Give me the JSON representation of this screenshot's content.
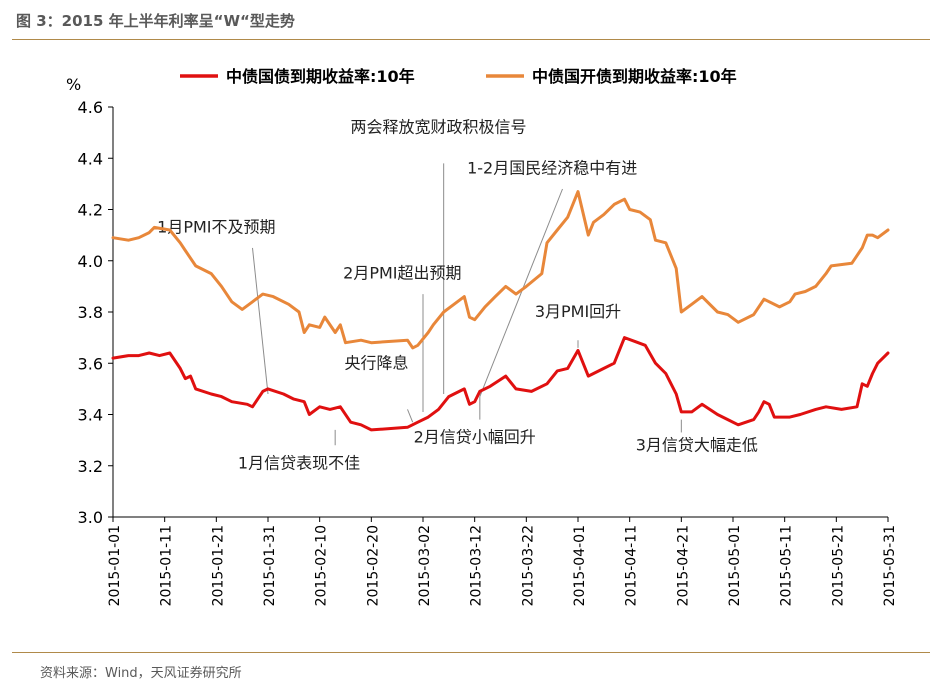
{
  "figure_title": "图 3：2015 年上半年利率呈“W“型走势",
  "source": "资料来源：Wind，天风证券研究所",
  "colors": {
    "series_gk": "#e8873a",
    "series_gz": "#e01010",
    "annotation_line": "#8c8c8c",
    "rule": "#b08a4a",
    "axis": "#000000"
  },
  "chart_data": {
    "type": "line",
    "unit": "%",
    "ylim": [
      3.0,
      4.6
    ],
    "yticks": [
      "3.0",
      "3.2",
      "3.4",
      "3.6",
      "3.8",
      "4.0",
      "4.2",
      "4.4",
      "4.6"
    ],
    "xlim": [
      "2015-01-01",
      "2015-05-31"
    ],
    "xticks": [
      "2015-01-01",
      "2015-01-11",
      "2015-01-21",
      "2015-01-31",
      "2015-02-10",
      "2015-02-20",
      "2015-03-02",
      "2015-03-12",
      "2015-03-22",
      "2015-04-01",
      "2015-04-11",
      "2015-04-21",
      "2015-05-01",
      "2015-05-11",
      "2015-05-21",
      "2015-05-31"
    ],
    "grid": false,
    "legend_position": "top",
    "series": [
      {
        "name": "中债国债到期收益率:10年",
        "color": "#e01010",
        "points": [
          [
            "2015-01-01",
            3.62
          ],
          [
            "2015-01-04",
            3.63
          ],
          [
            "2015-01-06",
            3.63
          ],
          [
            "2015-01-08",
            3.64
          ],
          [
            "2015-01-10",
            3.63
          ],
          [
            "2015-01-12",
            3.64
          ],
          [
            "2015-01-14",
            3.58
          ],
          [
            "2015-01-15",
            3.54
          ],
          [
            "2015-01-16",
            3.55
          ],
          [
            "2015-01-17",
            3.5
          ],
          [
            "2015-01-20",
            3.48
          ],
          [
            "2015-01-22",
            3.47
          ],
          [
            "2015-01-24",
            3.45
          ],
          [
            "2015-01-27",
            3.44
          ],
          [
            "2015-01-28",
            3.43
          ],
          [
            "2015-01-30",
            3.49
          ],
          [
            "2015-01-31",
            3.5
          ],
          [
            "2015-02-03",
            3.48
          ],
          [
            "2015-02-05",
            3.46
          ],
          [
            "2015-02-07",
            3.45
          ],
          [
            "2015-02-08",
            3.4
          ],
          [
            "2015-02-10",
            3.43
          ],
          [
            "2015-02-12",
            3.42
          ],
          [
            "2015-02-14",
            3.43
          ],
          [
            "2015-02-16",
            3.37
          ],
          [
            "2015-02-18",
            3.36
          ],
          [
            "2015-02-20",
            3.34
          ],
          [
            "2015-02-27",
            3.35
          ],
          [
            "2015-03-01",
            3.37
          ],
          [
            "2015-03-03",
            3.39
          ],
          [
            "2015-03-05",
            3.42
          ],
          [
            "2015-03-07",
            3.47
          ],
          [
            "2015-03-08",
            3.48
          ],
          [
            "2015-03-10",
            3.5
          ],
          [
            "2015-03-11",
            3.44
          ],
          [
            "2015-03-12",
            3.45
          ],
          [
            "2015-03-13",
            3.49
          ],
          [
            "2015-03-15",
            3.51
          ],
          [
            "2015-03-18",
            3.55
          ],
          [
            "2015-03-20",
            3.5
          ],
          [
            "2015-03-23",
            3.49
          ],
          [
            "2015-03-26",
            3.52
          ],
          [
            "2015-03-28",
            3.57
          ],
          [
            "2015-03-30",
            3.58
          ],
          [
            "2015-04-01",
            3.65
          ],
          [
            "2015-04-03",
            3.55
          ],
          [
            "2015-04-06",
            3.58
          ],
          [
            "2015-04-08",
            3.6
          ],
          [
            "2015-04-10",
            3.7
          ],
          [
            "2015-04-14",
            3.67
          ],
          [
            "2015-04-16",
            3.6
          ],
          [
            "2015-04-18",
            3.56
          ],
          [
            "2015-04-20",
            3.48
          ],
          [
            "2015-04-21",
            3.41
          ],
          [
            "2015-04-23",
            3.41
          ],
          [
            "2015-04-25",
            3.44
          ],
          [
            "2015-04-28",
            3.4
          ],
          [
            "2015-04-30",
            3.38
          ],
          [
            "2015-05-02",
            3.36
          ],
          [
            "2015-05-05",
            3.38
          ],
          [
            "2015-05-06",
            3.41
          ],
          [
            "2015-05-07",
            3.45
          ],
          [
            "2015-05-08",
            3.44
          ],
          [
            "2015-05-09",
            3.39
          ],
          [
            "2015-05-12",
            3.39
          ],
          [
            "2015-05-14",
            3.4
          ],
          [
            "2015-05-17",
            3.42
          ],
          [
            "2015-05-19",
            3.43
          ],
          [
            "2015-05-22",
            3.42
          ],
          [
            "2015-05-25",
            3.43
          ],
          [
            "2015-05-26",
            3.52
          ],
          [
            "2015-05-27",
            3.51
          ],
          [
            "2015-05-28",
            3.56
          ],
          [
            "2015-05-29",
            3.6
          ],
          [
            "2015-05-31",
            3.64
          ]
        ]
      },
      {
        "name": "中债国开债到期收益率:10年",
        "color": "#e8873a",
        "points": [
          [
            "2015-01-01",
            4.09
          ],
          [
            "2015-01-04",
            4.08
          ],
          [
            "2015-01-06",
            4.09
          ],
          [
            "2015-01-08",
            4.11
          ],
          [
            "2015-01-09",
            4.13
          ],
          [
            "2015-01-12",
            4.12
          ],
          [
            "2015-01-14",
            4.07
          ],
          [
            "2015-01-15",
            4.04
          ],
          [
            "2015-01-17",
            3.98
          ],
          [
            "2015-01-20",
            3.95
          ],
          [
            "2015-01-22",
            3.9
          ],
          [
            "2015-01-24",
            3.84
          ],
          [
            "2015-01-26",
            3.81
          ],
          [
            "2015-01-28",
            3.84
          ],
          [
            "2015-01-30",
            3.87
          ],
          [
            "2015-02-01",
            3.86
          ],
          [
            "2015-02-04",
            3.83
          ],
          [
            "2015-02-06",
            3.8
          ],
          [
            "2015-02-07",
            3.72
          ],
          [
            "2015-02-08",
            3.75
          ],
          [
            "2015-02-10",
            3.74
          ],
          [
            "2015-02-11",
            3.78
          ],
          [
            "2015-02-13",
            3.72
          ],
          [
            "2015-02-14",
            3.75
          ],
          [
            "2015-02-15",
            3.68
          ],
          [
            "2015-02-18",
            3.69
          ],
          [
            "2015-02-20",
            3.68
          ],
          [
            "2015-02-27",
            3.69
          ],
          [
            "2015-02-28",
            3.66
          ],
          [
            "2015-03-01",
            3.67
          ],
          [
            "2015-03-03",
            3.72
          ],
          [
            "2015-03-04",
            3.75
          ],
          [
            "2015-03-06",
            3.8
          ],
          [
            "2015-03-08",
            3.83
          ],
          [
            "2015-03-10",
            3.86
          ],
          [
            "2015-03-11",
            3.78
          ],
          [
            "2015-03-12",
            3.77
          ],
          [
            "2015-03-14",
            3.82
          ],
          [
            "2015-03-16",
            3.86
          ],
          [
            "2015-03-18",
            3.9
          ],
          [
            "2015-03-20",
            3.87
          ],
          [
            "2015-03-22",
            3.9
          ],
          [
            "2015-03-25",
            3.95
          ],
          [
            "2015-03-26",
            4.07
          ],
          [
            "2015-03-28",
            4.12
          ],
          [
            "2015-03-30",
            4.17
          ],
          [
            "2015-04-01",
            4.27
          ],
          [
            "2015-04-03",
            4.1
          ],
          [
            "2015-04-04",
            4.15
          ],
          [
            "2015-04-06",
            4.18
          ],
          [
            "2015-04-08",
            4.22
          ],
          [
            "2015-04-10",
            4.24
          ],
          [
            "2015-04-11",
            4.2
          ],
          [
            "2015-04-13",
            4.19
          ],
          [
            "2015-04-15",
            4.16
          ],
          [
            "2015-04-16",
            4.08
          ],
          [
            "2015-04-18",
            4.07
          ],
          [
            "2015-04-20",
            3.97
          ],
          [
            "2015-04-21",
            3.8
          ],
          [
            "2015-04-23",
            3.83
          ],
          [
            "2015-04-25",
            3.86
          ],
          [
            "2015-04-28",
            3.8
          ],
          [
            "2015-04-30",
            3.79
          ],
          [
            "2015-05-02",
            3.76
          ],
          [
            "2015-05-05",
            3.79
          ],
          [
            "2015-05-07",
            3.85
          ],
          [
            "2015-05-10",
            3.82
          ],
          [
            "2015-05-12",
            3.84
          ],
          [
            "2015-05-13",
            3.87
          ],
          [
            "2015-05-15",
            3.88
          ],
          [
            "2015-05-17",
            3.9
          ],
          [
            "2015-05-19",
            3.95
          ],
          [
            "2015-05-20",
            3.98
          ],
          [
            "2015-05-24",
            3.99
          ],
          [
            "2015-05-26",
            4.05
          ],
          [
            "2015-05-27",
            4.1
          ],
          [
            "2015-05-28",
            4.1
          ],
          [
            "2015-05-29",
            4.09
          ],
          [
            "2015-05-31",
            4.12
          ]
        ]
      }
    ],
    "annotations": [
      {
        "text": "1月PMI不及预期",
        "label_date": "2015-01-21",
        "label_y": 4.11,
        "line": [
          [
            "2015-01-28",
            4.05
          ],
          [
            "2015-01-31",
            3.48
          ]
        ]
      },
      {
        "text": "两会释放宽财政积极信号",
        "label_date": "2015-03-05",
        "label_y": 4.5,
        "line": [
          [
            "2015-03-06",
            4.38
          ],
          [
            "2015-03-06",
            3.48
          ]
        ]
      },
      {
        "text": "1-2月国民经济稳中有进",
        "label_date": "2015-03-27",
        "label_y": 4.34,
        "line": [
          [
            "2015-03-29",
            4.28
          ],
          [
            "2015-03-13",
            3.47
          ]
        ]
      },
      {
        "text": "2月PMI超出预期",
        "label_date": "2015-02-26",
        "label_y": 3.93,
        "line": [
          [
            "2015-03-02",
            3.87
          ],
          [
            "2015-03-02",
            3.41
          ]
        ]
      },
      {
        "text": "3月PMI回升",
        "label_date": "2015-04-01",
        "label_y": 3.78,
        "line": [
          [
            "2015-04-01",
            3.69
          ],
          [
            "2015-04-01",
            3.66
          ]
        ]
      },
      {
        "text": "央行降息",
        "label_date": "2015-02-21",
        "label_y": 3.58,
        "line": [
          [
            "2015-02-27",
            3.42
          ],
          [
            "2015-02-28",
            3.37
          ]
        ]
      },
      {
        "text": "1月信贷表现不佳",
        "label_date": "2015-02-06",
        "label_y": 3.19,
        "line": [
          [
            "2015-02-13",
            3.34
          ],
          [
            "2015-02-13",
            3.28
          ]
        ]
      },
      {
        "text": "2月信贷小幅回升",
        "label_date": "2015-03-12",
        "label_y": 3.29,
        "line": [
          [
            "2015-03-13",
            3.47
          ],
          [
            "2015-03-13",
            3.38
          ]
        ]
      },
      {
        "text": "3月信贷大幅走低",
        "label_date": "2015-04-24",
        "label_y": 3.26,
        "line": [
          [
            "2015-04-21",
            3.38
          ],
          [
            "2015-04-21",
            3.33
          ]
        ]
      }
    ]
  }
}
